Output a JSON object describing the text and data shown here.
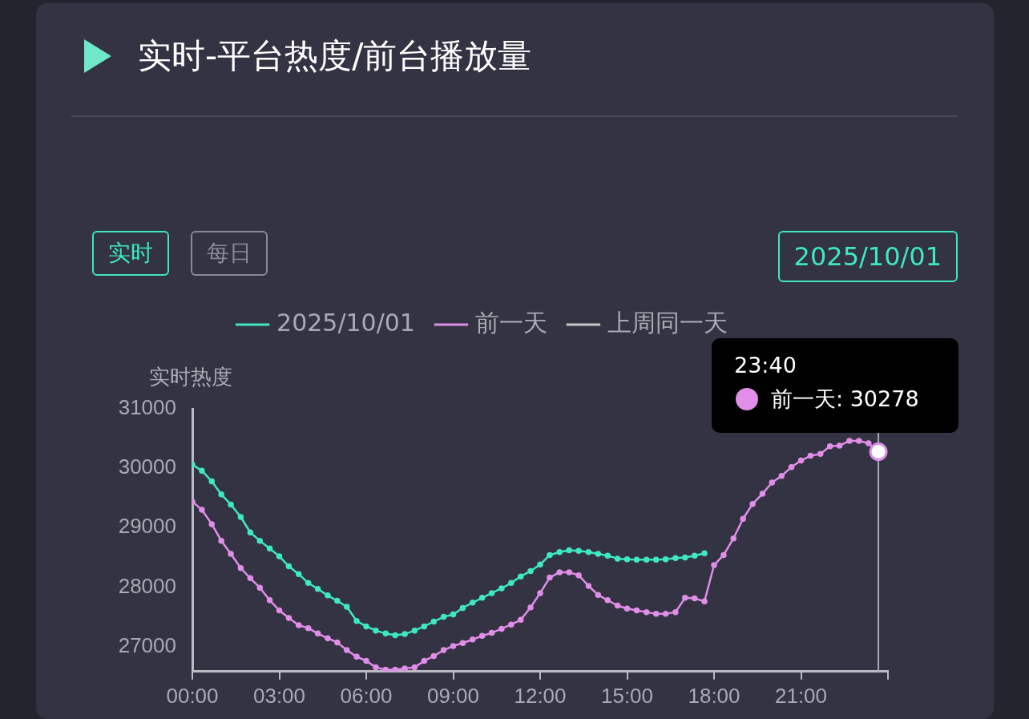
{
  "chart_data": {
    "type": "line",
    "title": "实时-平台热度/前台播放量",
    "ylabel": "实时热度",
    "xlim": [
      0,
      24
    ],
    "xticks": [
      {
        "value": 0,
        "label": "00:00"
      },
      {
        "value": 3,
        "label": "03:00"
      },
      {
        "value": 6,
        "label": "06:00"
      },
      {
        "value": 9,
        "label": "09:00"
      },
      {
        "value": 12,
        "label": "12:00"
      },
      {
        "value": 15,
        "label": "15:00"
      },
      {
        "value": 18,
        "label": "18:00"
      },
      {
        "value": 21,
        "label": "21:00"
      },
      {
        "value": 24,
        "label": null
      }
    ],
    "ylim": [
      26580,
      31000
    ],
    "yticks": [
      27000,
      28000,
      29000,
      30000,
      31000
    ],
    "grid": false,
    "legend": "top",
    "marker": "circle",
    "annotations": [
      "实时",
      "每日",
      "2025/10/01",
      "23:40",
      "前一天: 30278"
    ],
    "ref_lines": [
      {
        "axis": "x",
        "value": 23.67,
        "color": "#aaaab4"
      }
    ],
    "series": [
      {
        "name": "2025/10/01",
        "color": "#3ee8c0",
        "x": [
          0,
          0.33,
          0.67,
          1,
          1.33,
          1.67,
          2,
          2.33,
          2.67,
          3,
          3.33,
          3.67,
          4,
          4.33,
          4.67,
          5,
          5.33,
          5.67,
          6,
          6.33,
          6.67,
          7,
          7.33,
          7.67,
          8,
          8.33,
          8.67,
          9,
          9.33,
          9.67,
          10,
          10.33,
          10.67,
          11,
          11.33,
          11.67,
          12,
          12.33,
          12.67,
          13,
          13.33,
          13.67,
          14,
          14.33,
          14.67,
          15,
          15.33,
          15.67,
          16,
          16.33,
          16.67,
          17,
          17.33,
          17.67
        ],
        "values": [
          30060,
          29960,
          29780,
          29560,
          29390,
          29180,
          28920,
          28780,
          28650,
          28520,
          28350,
          28220,
          28070,
          27970,
          27860,
          27770,
          27670,
          27430,
          27340,
          27270,
          27220,
          27190,
          27210,
          27270,
          27340,
          27420,
          27500,
          27540,
          27650,
          27740,
          27820,
          27900,
          27980,
          28070,
          28180,
          28270,
          28380,
          28540,
          28590,
          28620,
          28610,
          28590,
          28560,
          28530,
          28480,
          28470,
          28460,
          28460,
          28460,
          28470,
          28490,
          28500,
          28530,
          28570
        ]
      },
      {
        "name": "前一天",
        "color": "#e08ee8",
        "x": [
          0,
          0.33,
          0.67,
          1,
          1.33,
          1.67,
          2,
          2.33,
          2.67,
          3,
          3.33,
          3.67,
          4,
          4.33,
          4.67,
          5,
          5.33,
          5.67,
          6,
          6.33,
          6.67,
          7,
          7.33,
          7.67,
          8,
          8.33,
          8.67,
          9,
          9.33,
          9.67,
          10,
          10.33,
          10.67,
          11,
          11.33,
          11.67,
          12,
          12.33,
          12.67,
          13,
          13.33,
          13.67,
          14,
          14.33,
          14.67,
          15,
          15.33,
          15.67,
          16,
          16.33,
          16.67,
          17,
          17.33,
          17.67,
          18,
          18.33,
          18.67,
          19,
          19.33,
          19.67,
          20,
          20.33,
          20.67,
          21,
          21.33,
          21.67,
          22,
          22.33,
          22.67,
          23,
          23.33,
          23.67
        ],
        "values": [
          29440,
          29300,
          29060,
          28780,
          28560,
          28320,
          28150,
          27990,
          27780,
          27610,
          27480,
          27360,
          27310,
          27220,
          27140,
          27070,
          26940,
          26830,
          26760,
          26650,
          26610,
          26610,
          26630,
          26650,
          26760,
          26840,
          26940,
          27010,
          27060,
          27120,
          27180,
          27230,
          27300,
          27370,
          27450,
          27660,
          27900,
          28160,
          28250,
          28250,
          28200,
          28020,
          27870,
          27780,
          27690,
          27640,
          27610,
          27580,
          27550,
          27550,
          27580,
          27820,
          27810,
          27760,
          28370,
          28540,
          28820,
          29150,
          29400,
          29570,
          29760,
          29870,
          30020,
          30130,
          30210,
          30240,
          30370,
          30380,
          30460,
          30460,
          30420,
          30278
        ]
      },
      {
        "name": "上周同一天",
        "color": "#c8c8c8"
      }
    ]
  }
}
